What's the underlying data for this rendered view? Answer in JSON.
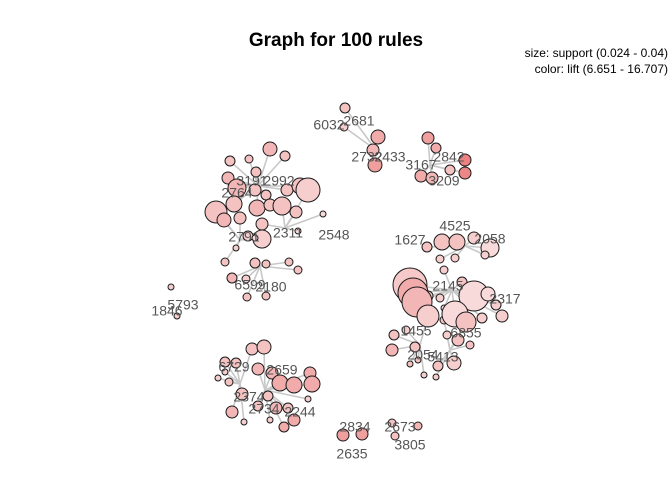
{
  "title": "Graph for 100 rules",
  "legend": {
    "size": "size: support (0.024 - 0.04)",
    "color": "color: lift (6.651 - 16.707)"
  },
  "node_labels": [
    "6032",
    "2681",
    "2732",
    "2433",
    "3167",
    "2842",
    "3209",
    "3191",
    "2992",
    "2764",
    "2791",
    "2311",
    "2548",
    "6599",
    "2180",
    "1846",
    "5793",
    "1627",
    "4525",
    "2058",
    "2145",
    "2317",
    "1455",
    "6855",
    "2054",
    "5413",
    "6729",
    "2659",
    "2374",
    "2734",
    "2244",
    "2834",
    "2673",
    "2635",
    "3805"
  ],
  "colors": {
    "edge": "#c8c8c8",
    "node_stroke": "#1a1a1a",
    "node_fill_low": "#fbe6e6",
    "node_fill_high": "#e86f6f"
  }
}
